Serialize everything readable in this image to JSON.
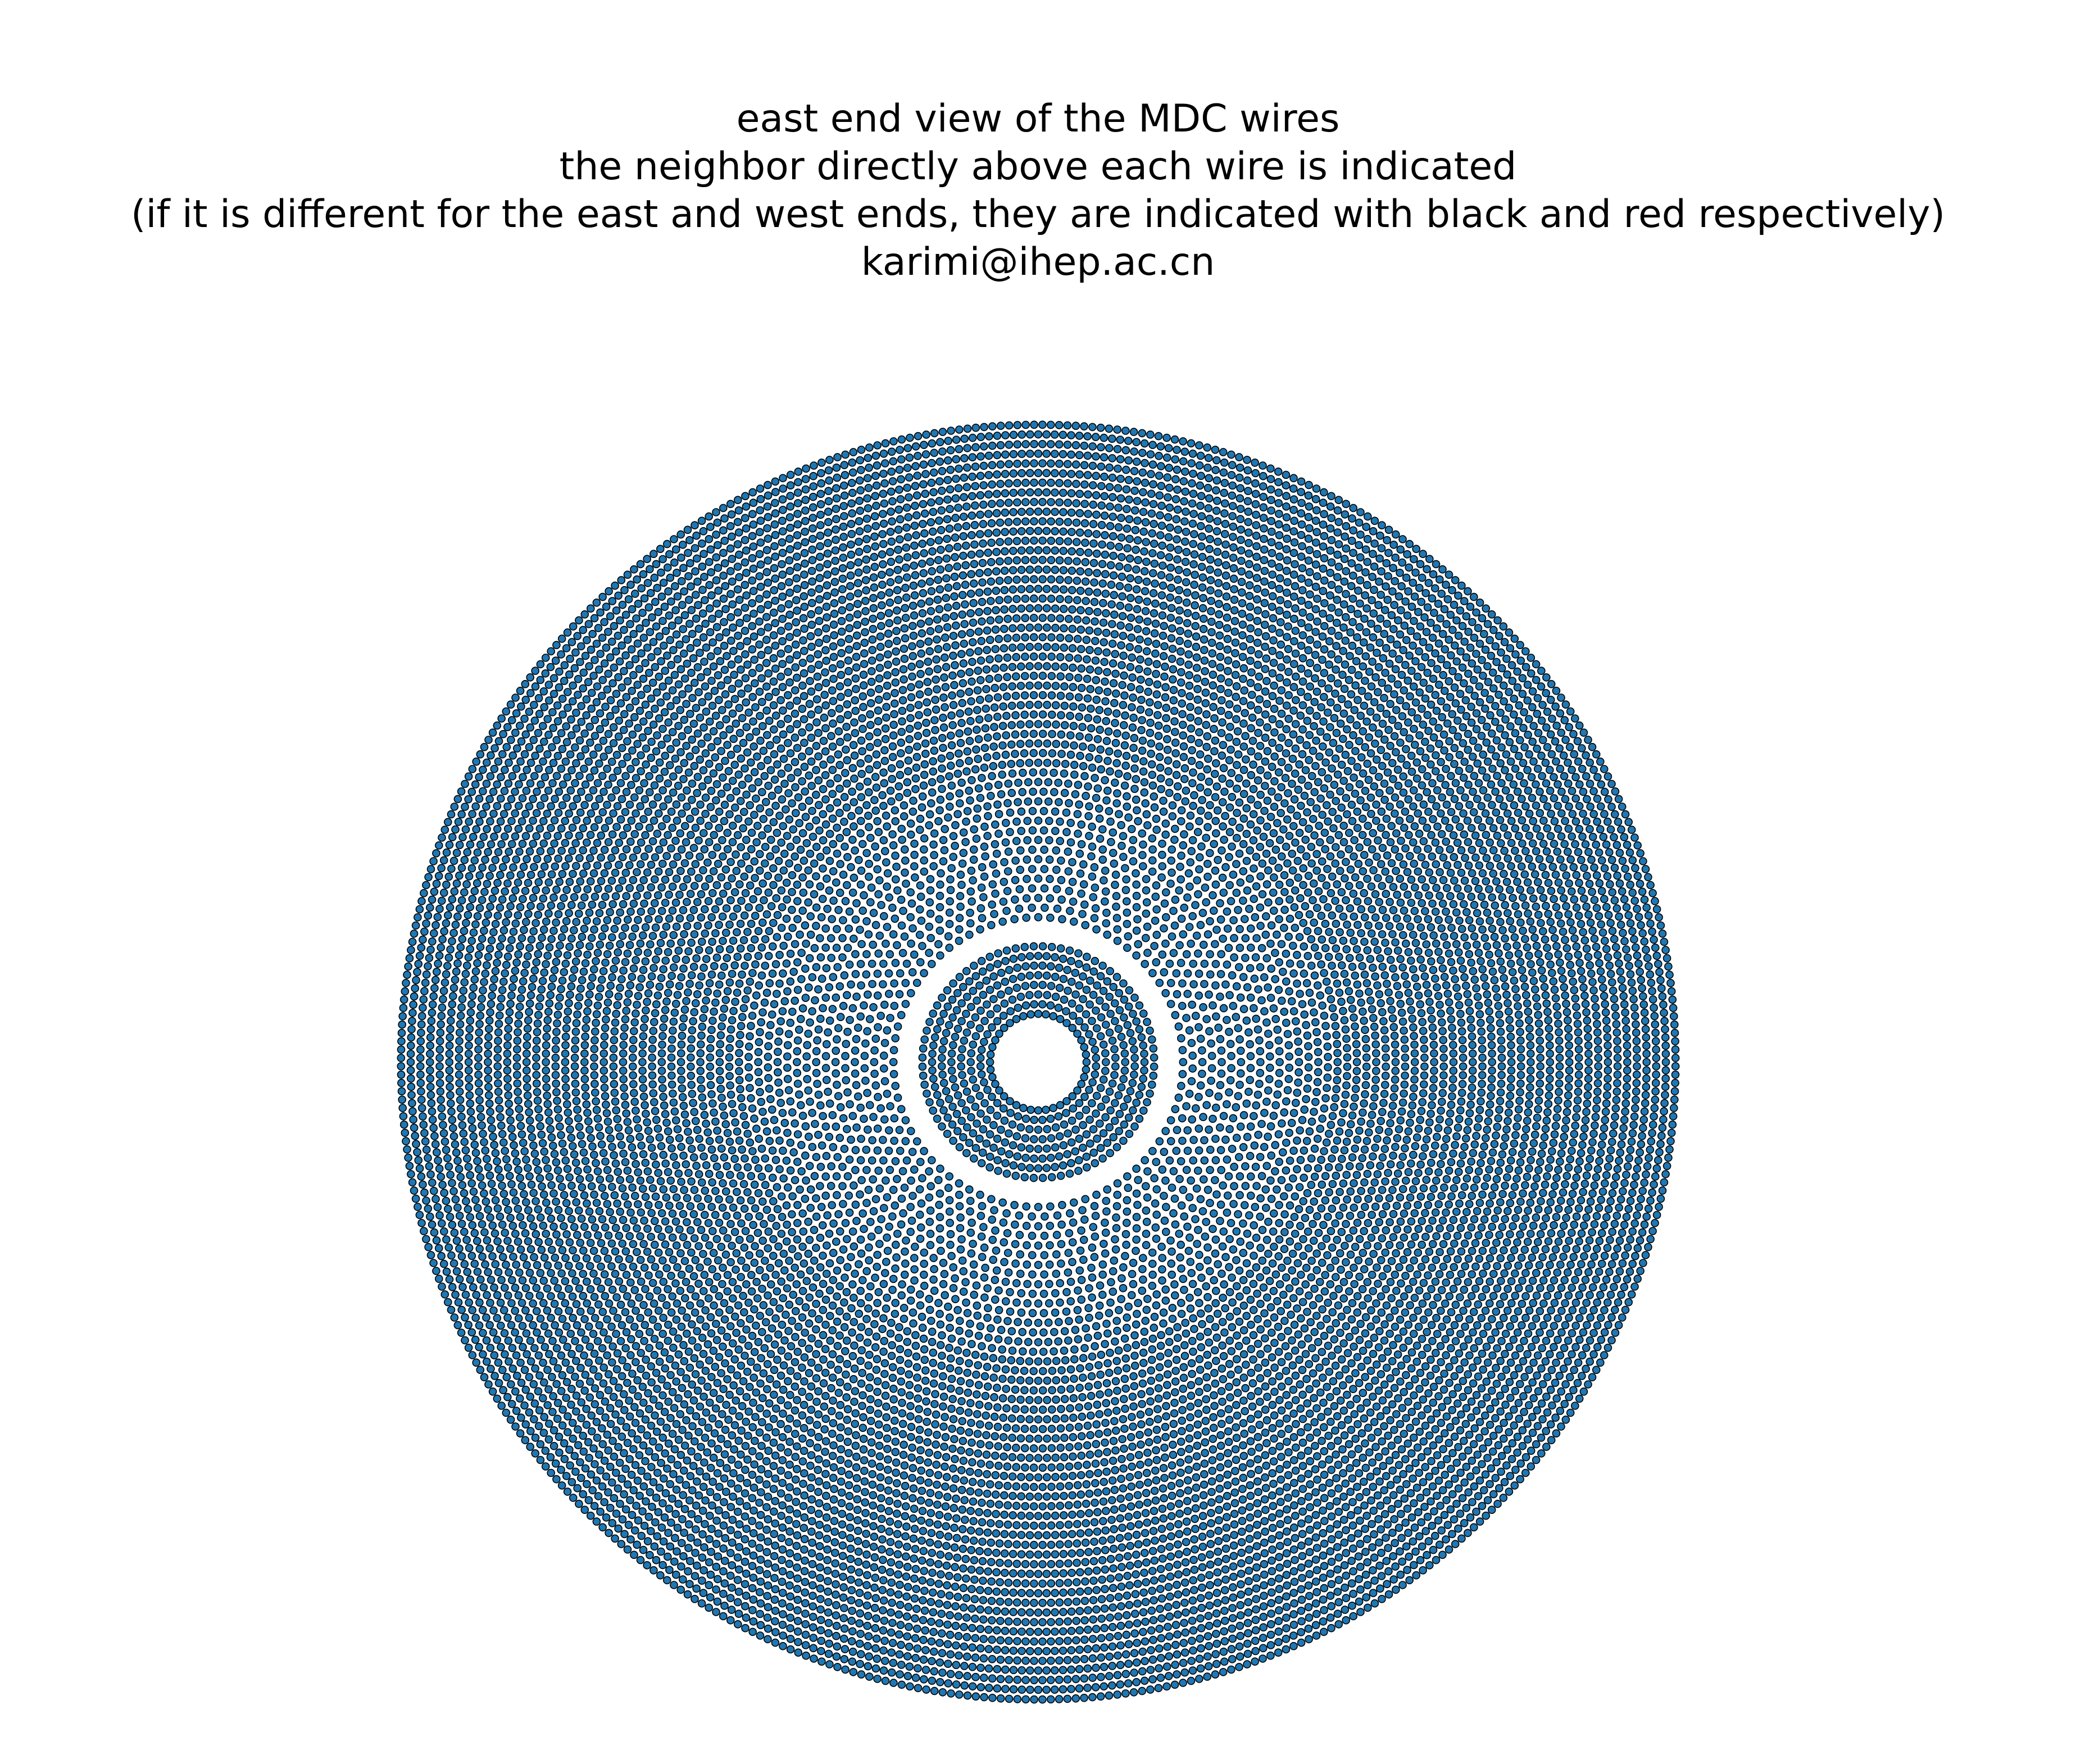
{
  "chart_data": {
    "type": "scatter",
    "title_lines": [
      "east end view of the MDC wires",
      "the neighbor directly above each wire is indicated",
      "(if it is different for the east and west ends, they are indicated with black and red respectively)",
      "karimi@ihep.ac.cn"
    ],
    "xlabel": "",
    "ylabel": "",
    "axes_visible": false,
    "grid": false,
    "legend": "none",
    "aspect": "equal",
    "xlim": [
      -810,
      810
    ],
    "ylim": [
      -810,
      810
    ],
    "marker_color": "#1f77b4",
    "marker_edge_color": "#000000",
    "neighbor_label_color_east": "#000000",
    "neighbor_label_color_west": "#ff0000",
    "rings": [
      {
        "r": 60,
        "n": 40
      },
      {
        "r": 72,
        "n": 44
      },
      {
        "r": 84,
        "n": 48
      },
      {
        "r": 96,
        "n": 56
      },
      {
        "r": 108,
        "n": 64
      },
      {
        "r": 120,
        "n": 72
      },
      {
        "r": 132,
        "n": 80
      },
      {
        "r": 144,
        "n": 80
      },
      {
        "r": 180,
        "n": 76
      },
      {
        "r": 192,
        "n": 76
      },
      {
        "r": 204,
        "n": 88
      },
      {
        "r": 216,
        "n": 88
      },
      {
        "r": 228,
        "n": 100
      },
      {
        "r": 240,
        "n": 100
      },
      {
        "r": 252,
        "n": 112
      },
      {
        "r": 264,
        "n": 112
      },
      {
        "r": 276,
        "n": 128
      },
      {
        "r": 288,
        "n": 128
      },
      {
        "r": 300,
        "n": 140
      },
      {
        "r": 312,
        "n": 140
      },
      {
        "r": 324,
        "n": 160
      },
      {
        "r": 336,
        "n": 160
      },
      {
        "r": 348,
        "n": 176
      },
      {
        "r": 360,
        "n": 176
      },
      {
        "r": 372,
        "n": 208
      },
      {
        "r": 384,
        "n": 208
      },
      {
        "r": 396,
        "n": 224
      },
      {
        "r": 408,
        "n": 224
      },
      {
        "r": 420,
        "n": 240
      },
      {
        "r": 432,
        "n": 240
      },
      {
        "r": 444,
        "n": 256
      },
      {
        "r": 456,
        "n": 256
      },
      {
        "r": 468,
        "n": 272
      },
      {
        "r": 480,
        "n": 272
      },
      {
        "r": 492,
        "n": 288
      },
      {
        "r": 504,
        "n": 288
      },
      {
        "r": 516,
        "n": 304
      },
      {
        "r": 528,
        "n": 304
      },
      {
        "r": 540,
        "n": 320
      },
      {
        "r": 552,
        "n": 320
      },
      {
        "r": 564,
        "n": 336
      },
      {
        "r": 576,
        "n": 336
      },
      {
        "r": 588,
        "n": 352
      },
      {
        "r": 600,
        "n": 352
      },
      {
        "r": 612,
        "n": 368
      },
      {
        "r": 624,
        "n": 368
      },
      {
        "r": 636,
        "n": 384
      },
      {
        "r": 648,
        "n": 384
      },
      {
        "r": 660,
        "n": 400
      },
      {
        "r": 672,
        "n": 400
      },
      {
        "r": 684,
        "n": 416
      },
      {
        "r": 696,
        "n": 416
      },
      {
        "r": 708,
        "n": 432
      },
      {
        "r": 720,
        "n": 432
      },
      {
        "r": 732,
        "n": 448
      },
      {
        "r": 744,
        "n": 448
      },
      {
        "r": 756,
        "n": 464
      },
      {
        "r": 768,
        "n": 464
      },
      {
        "r": 780,
        "n": 480
      },
      {
        "r": 792,
        "n": 480
      }
    ]
  }
}
